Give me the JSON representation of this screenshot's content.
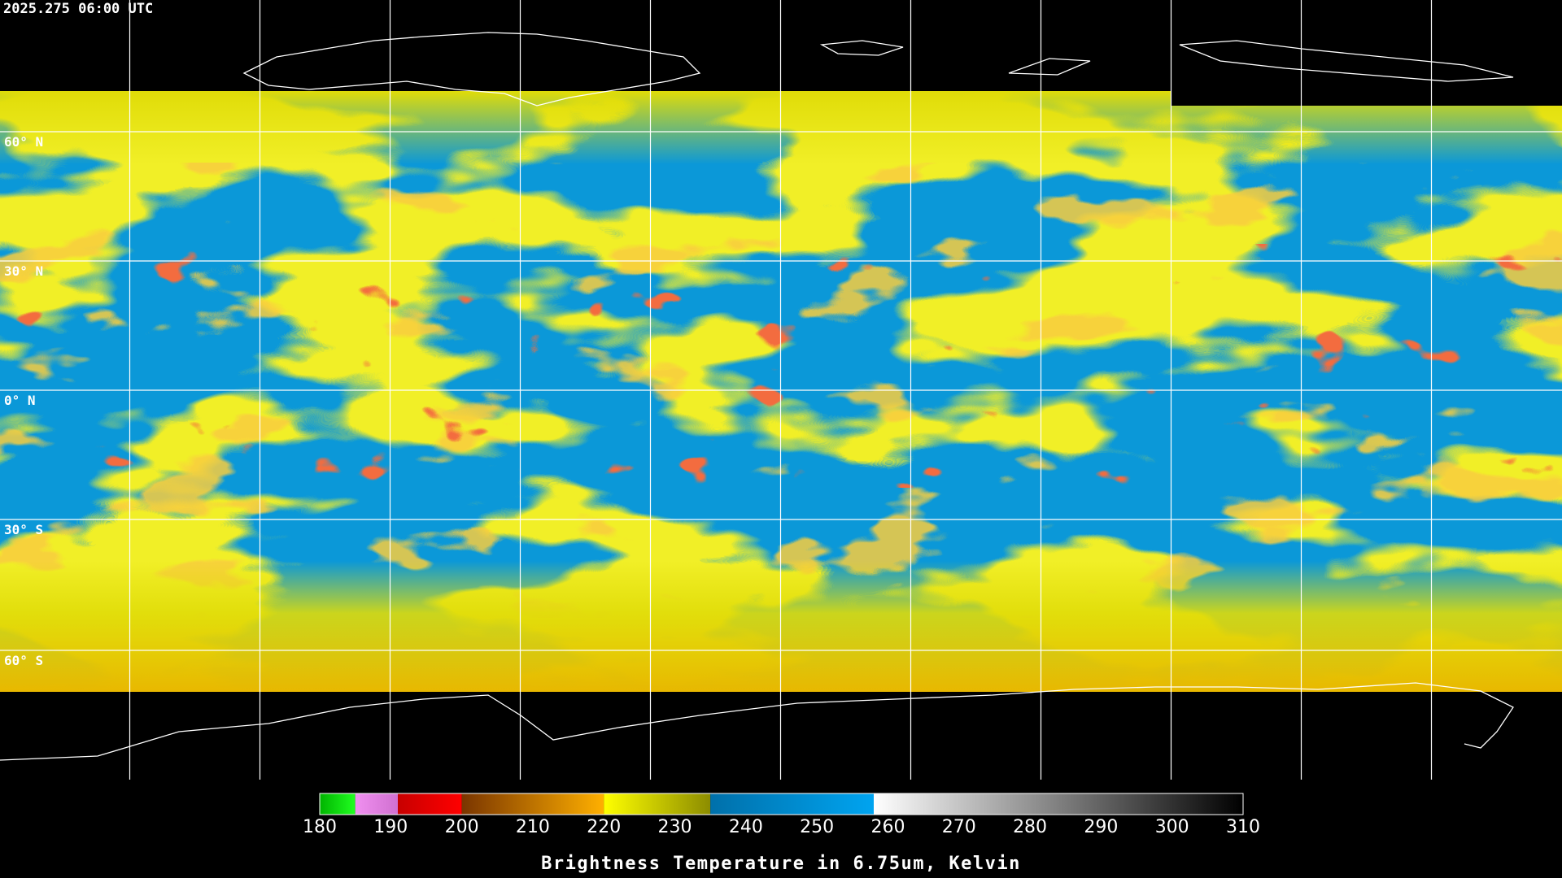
{
  "header": {
    "timestamp": "2025.275 06:00 UTC"
  },
  "map": {
    "lat_labels": [
      "60° N",
      "30° N",
      "0° N",
      "30° S",
      "60° S"
    ]
  },
  "colorbar": {
    "range": [
      180,
      310
    ],
    "ticks": [
      180,
      190,
      200,
      210,
      220,
      230,
      240,
      250,
      260,
      270,
      280,
      290,
      300,
      310
    ],
    "label": "Brightness Temperature in 6.75um, Kelvin",
    "segments": [
      {
        "from": 180,
        "to": 185,
        "colors": [
          "#00b400",
          "#20ff20"
        ]
      },
      {
        "from": 185,
        "to": 191,
        "colors": [
          "#f090f0",
          "#d070d0"
        ]
      },
      {
        "from": 191,
        "to": 200,
        "colors": [
          "#c80000",
          "#ff0000"
        ]
      },
      {
        "from": 200,
        "to": 220,
        "colors": [
          "#7a3500",
          "#ffb000"
        ]
      },
      {
        "from": 220,
        "to": 235,
        "colors": [
          "#ffff00",
          "#8c8c00"
        ]
      },
      {
        "from": 235,
        "to": 258,
        "colors": [
          "#0070aa",
          "#00a4f0"
        ]
      },
      {
        "from": 258,
        "to": 310,
        "colors": [
          "#ffffff",
          "#000000"
        ]
      }
    ]
  }
}
